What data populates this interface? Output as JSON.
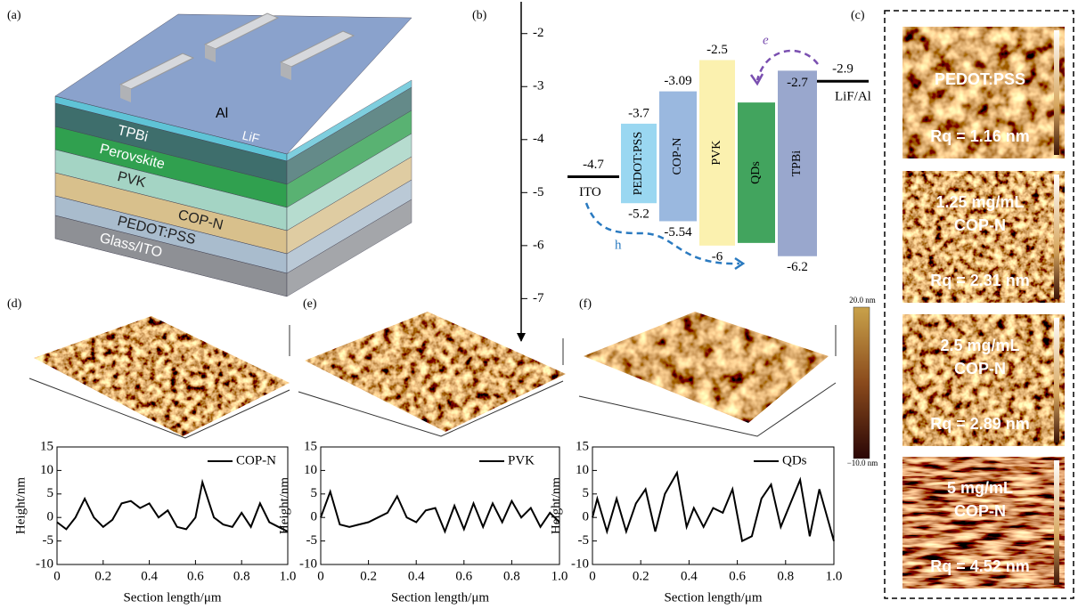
{
  "panel_labels": [
    "(a)",
    "(b)",
    "(c)",
    "(d)",
    "(e)",
    "(f)"
  ],
  "device": {
    "electrode": "Al",
    "layers": [
      "LiF",
      "TPBi",
      "Perovskite",
      "PVK",
      "COP-N",
      "PEDOT:PSS",
      "Glass/ITO"
    ]
  },
  "energy_diagram": {
    "ylim": [
      -1.4,
      -7.8
    ],
    "yticks": [
      -2,
      -3,
      -4,
      -5,
      -6,
      -7
    ],
    "bars": [
      {
        "name": "PEDOT:PSS",
        "top": -3.7,
        "bottom": -5.2,
        "color": "#8fd3ef",
        "labeled": true
      },
      {
        "name": "COP-N",
        "top": -3.09,
        "bottom": -5.54,
        "color": "#8fb0dc",
        "labeled": true
      },
      {
        "name": "PVK",
        "top": -2.5,
        "bottom": -6.0,
        "color": "#fbefa6",
        "labeled": true
      },
      {
        "name": "QDs",
        "top": -3.3,
        "bottom": -5.95,
        "color": "#2e9a4c",
        "labeled": false
      },
      {
        "name": "TPBi",
        "top": -2.7,
        "bottom": -6.2,
        "color": "#8e9dc8",
        "labeled": true
      }
    ],
    "electrodes": [
      {
        "name": "ITO",
        "value": -4.7
      },
      {
        "name": "LiF/Al",
        "value": -2.9
      }
    ],
    "carriers": [
      "e",
      "h"
    ]
  },
  "afm_images": [
    {
      "lines": [
        "PEDOT:PSS",
        "Rq = 1.16 nm"
      ]
    },
    {
      "lines": [
        "1.25 mg/mL",
        "COP-N",
        "Rq = 2.31 nm"
      ]
    },
    {
      "lines": [
        "2.5 mg/mL",
        "COP-N",
        "Rq = 2.89 nm"
      ]
    },
    {
      "lines": [
        "5 mg/mL",
        "COP-N",
        "Rq = 4.52 nm"
      ]
    }
  ],
  "colorbar": {
    "max_label": "20.0 nm",
    "min_label": "−10.0 nm"
  },
  "chart_data": [
    {
      "type": "line",
      "x_label": "Section length/μm",
      "y_label": "Height/nm",
      "xlim": [
        0,
        1
      ],
      "ylim": [
        -10,
        15
      ],
      "xticks": [
        0,
        0.2,
        0.4,
        0.6,
        0.8,
        {
          "value": 1,
          "label": "1.0"
        }
      ],
      "yticks": [
        -10,
        -5,
        0,
        5,
        10,
        15
      ],
      "x": [
        0,
        0.04,
        0.08,
        0.12,
        0.16,
        0.2,
        0.24,
        0.28,
        0.32,
        0.36,
        0.4,
        0.44,
        0.48,
        0.52,
        0.56,
        0.6,
        0.63,
        0.68,
        0.72,
        0.76,
        0.8,
        0.84,
        0.88,
        0.92,
        0.96,
        1
      ],
      "series": [
        {
          "name": "COP-N",
          "color": "#000000",
          "values": [
            -1,
            -2.5,
            0,
            4,
            0,
            -2,
            -0.5,
            3,
            3.5,
            2,
            3,
            0,
            1.5,
            -2,
            -2.5,
            0,
            7.5,
            0,
            -1.5,
            -2,
            1,
            -2,
            3,
            -1,
            -2,
            -3
          ]
        }
      ]
    },
    {
      "type": "line",
      "x_label": "Section length/μm",
      "y_label": "Height/nm",
      "xlim": [
        0,
        1
      ],
      "ylim": [
        -10,
        15
      ],
      "xticks": [
        0,
        0.2,
        0.4,
        0.6,
        0.8,
        {
          "value": 1,
          "label": "1.0"
        }
      ],
      "yticks": [
        -10,
        -5,
        0,
        5,
        10,
        15
      ],
      "x": [
        0,
        0.04,
        0.08,
        0.12,
        0.16,
        0.2,
        0.24,
        0.28,
        0.32,
        0.36,
        0.4,
        0.44,
        0.48,
        0.52,
        0.56,
        0.6,
        0.64,
        0.68,
        0.72,
        0.76,
        0.8,
        0.84,
        0.88,
        0.92,
        0.96,
        1
      ],
      "series": [
        {
          "name": "PVK",
          "color": "#000000",
          "values": [
            0,
            5.5,
            -1.5,
            -2,
            -1.5,
            -1,
            0,
            1,
            4.5,
            0,
            -1,
            1.5,
            2,
            -3,
            2.5,
            -2.5,
            3,
            -2,
            3,
            -1,
            3.5,
            0,
            2,
            -2,
            1,
            -1
          ]
        }
      ]
    },
    {
      "type": "line",
      "x_label": "Section length/μm",
      "y_label": "Height/nm",
      "xlim": [
        0,
        1
      ],
      "ylim": [
        -10,
        15
      ],
      "xticks": [
        0,
        0.2,
        0.4,
        0.6,
        0.8,
        {
          "value": 1,
          "label": "1.0"
        }
      ],
      "yticks": [
        -10,
        -5,
        0,
        5,
        10,
        15
      ],
      "x": [
        0,
        0.02,
        0.06,
        0.1,
        0.14,
        0.18,
        0.22,
        0.26,
        0.3,
        0.35,
        0.39,
        0.42,
        0.46,
        0.5,
        0.54,
        0.58,
        0.62,
        0.66,
        0.7,
        0.74,
        0.78,
        0.82,
        0.86,
        0.9,
        0.94,
        1
      ],
      "series": [
        {
          "name": "QDs",
          "color": "#000000",
          "values": [
            0,
            4,
            -3,
            4,
            -3,
            3,
            6,
            -3,
            5,
            9.5,
            -2,
            2,
            -2,
            2,
            1,
            6,
            -5,
            -4,
            4,
            7,
            -2,
            3,
            8,
            -4,
            6,
            -5
          ]
        }
      ]
    }
  ]
}
